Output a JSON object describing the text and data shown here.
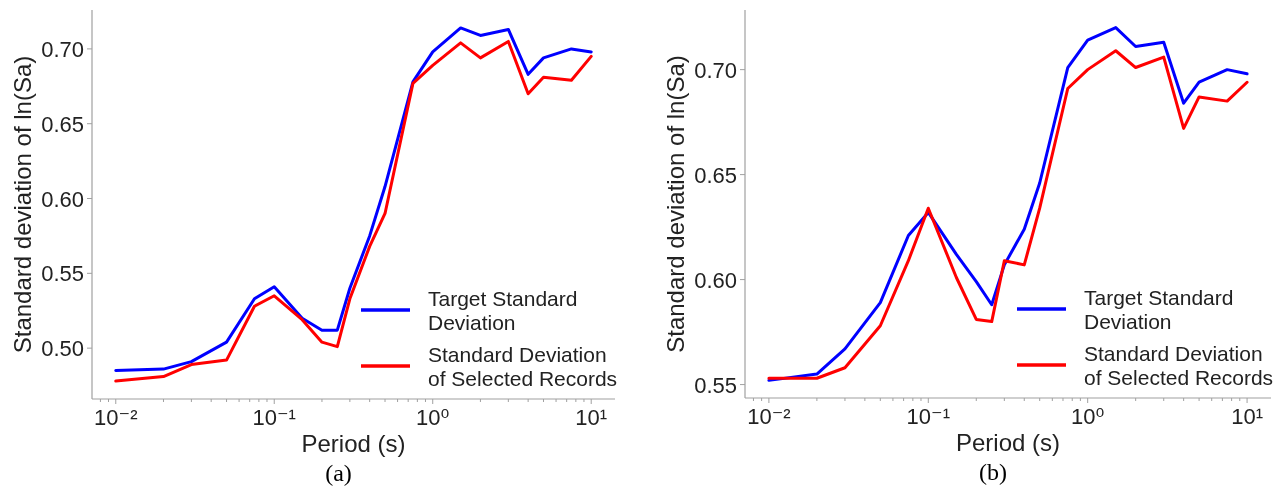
{
  "chart_data": [
    {
      "type": "line",
      "xlabel": "Period (s)",
      "ylabel": "Standard deviation of ln(Sa)",
      "annotations": [
        "(a)"
      ],
      "log": "x",
      "legend": "bottom right",
      "x": [
        0.01,
        0.02,
        0.03,
        0.05,
        0.075,
        0.1,
        0.15,
        0.2,
        0.25,
        0.3,
        0.4,
        0.5,
        0.75,
        1,
        1.5,
        2,
        3,
        4,
        5,
        7.5,
        10
      ],
      "xlim": [
        0.00708,
        14.13
      ],
      "xticks": [
        {
          "value": 0.008,
          "label": null
        },
        {
          "value": 0.009,
          "label": null
        },
        {
          "value": 0.01,
          "label": "10⁻²"
        },
        {
          "value": 0.02,
          "label": null
        },
        {
          "value": 0.03,
          "label": null
        },
        {
          "value": 0.04,
          "label": null
        },
        {
          "value": 0.05,
          "label": null
        },
        {
          "value": 0.06,
          "label": null
        },
        {
          "value": 0.07,
          "label": null
        },
        {
          "value": 0.08,
          "label": null
        },
        {
          "value": 0.09,
          "label": null
        },
        {
          "value": 0.1,
          "label": "10⁻¹"
        },
        {
          "value": 0.2,
          "label": null
        },
        {
          "value": 0.3,
          "label": null
        },
        {
          "value": 0.4,
          "label": null
        },
        {
          "value": 0.5,
          "label": null
        },
        {
          "value": 0.6,
          "label": null
        },
        {
          "value": 0.7,
          "label": null
        },
        {
          "value": 0.8,
          "label": null
        },
        {
          "value": 0.9,
          "label": null
        },
        {
          "value": 1,
          "label": "10⁰"
        },
        {
          "value": 2,
          "label": null
        },
        {
          "value": 3,
          "label": null
        },
        {
          "value": 4,
          "label": null
        },
        {
          "value": 5,
          "label": null
        },
        {
          "value": 6,
          "label": null
        },
        {
          "value": 7,
          "label": null
        },
        {
          "value": 8,
          "label": null
        },
        {
          "value": 9,
          "label": null
        },
        {
          "value": 10,
          "label": "10¹"
        }
      ],
      "ylim": [
        0.466,
        0.726
      ],
      "yticks": [
        {
          "value": 0.5,
          "label": "0.50"
        },
        {
          "value": 0.55,
          "label": "0.55"
        },
        {
          "value": 0.6,
          "label": "0.60"
        },
        {
          "value": 0.65,
          "label": "0.65"
        },
        {
          "value": 0.7,
          "label": "0.70"
        }
      ],
      "series": [
        {
          "name": "Target Standard Deviation",
          "color": "#0000ff",
          "values": [
            0.485,
            0.486,
            0.491,
            0.504,
            0.533,
            0.541,
            0.52,
            0.512,
            0.512,
            0.54,
            0.575,
            0.608,
            0.678,
            0.698,
            0.714,
            0.709,
            0.713,
            0.683,
            0.694,
            0.7,
            0.698
          ]
        },
        {
          "name": "Standard Deviation of Selected Records",
          "color": "#ff0000",
          "values": [
            0.478,
            0.481,
            0.489,
            0.492,
            0.528,
            0.535,
            0.519,
            0.504,
            0.501,
            0.533,
            0.568,
            0.59,
            0.677,
            0.689,
            0.704,
            0.694,
            0.705,
            0.67,
            0.681,
            0.679,
            0.695
          ]
        }
      ]
    },
    {
      "type": "line",
      "xlabel": "Period (s)",
      "ylabel": "Standard deviation of ln(Sa)",
      "annotations": [
        "(b)"
      ],
      "log": "x",
      "legend": "bottom right",
      "x": [
        0.01,
        0.02,
        0.03,
        0.05,
        0.075,
        0.1,
        0.15,
        0.2,
        0.25,
        0.3,
        0.4,
        0.5,
        0.75,
        1,
        1.5,
        2,
        3,
        4,
        5,
        7.5,
        10
      ],
      "xlim": [
        0.00708,
        14.13
      ],
      "xticks": [
        {
          "value": 0.008,
          "label": null
        },
        {
          "value": 0.009,
          "label": null
        },
        {
          "value": 0.01,
          "label": "10⁻²"
        },
        {
          "value": 0.02,
          "label": null
        },
        {
          "value": 0.03,
          "label": null
        },
        {
          "value": 0.04,
          "label": null
        },
        {
          "value": 0.05,
          "label": null
        },
        {
          "value": 0.06,
          "label": null
        },
        {
          "value": 0.07,
          "label": null
        },
        {
          "value": 0.08,
          "label": null
        },
        {
          "value": 0.09,
          "label": null
        },
        {
          "value": 0.1,
          "label": "10⁻¹"
        },
        {
          "value": 0.2,
          "label": null
        },
        {
          "value": 0.3,
          "label": null
        },
        {
          "value": 0.4,
          "label": null
        },
        {
          "value": 0.5,
          "label": null
        },
        {
          "value": 0.6,
          "label": null
        },
        {
          "value": 0.7,
          "label": null
        },
        {
          "value": 0.8,
          "label": null
        },
        {
          "value": 0.9,
          "label": null
        },
        {
          "value": 1,
          "label": "10⁰"
        },
        {
          "value": 2,
          "label": null
        },
        {
          "value": 3,
          "label": null
        },
        {
          "value": 4,
          "label": null
        },
        {
          "value": 5,
          "label": null
        },
        {
          "value": 6,
          "label": null
        },
        {
          "value": 7,
          "label": null
        },
        {
          "value": 8,
          "label": null
        },
        {
          "value": 9,
          "label": null
        },
        {
          "value": 10,
          "label": "10¹"
        }
      ],
      "ylim": [
        0.5436,
        0.7284
      ],
      "yticks": [
        {
          "value": 0.55,
          "label": "0.55"
        },
        {
          "value": 0.6,
          "label": "0.60"
        },
        {
          "value": 0.65,
          "label": "0.65"
        },
        {
          "value": 0.7,
          "label": "0.70"
        }
      ],
      "series": [
        {
          "name": "Target Standard Deviation",
          "color": "#0000ff",
          "values": [
            0.552,
            0.555,
            0.567,
            0.589,
            0.621,
            0.632,
            0.612,
            0.599,
            0.588,
            0.607,
            0.624,
            0.646,
            0.701,
            0.714,
            0.72,
            0.711,
            0.713,
            0.684,
            0.694,
            0.7,
            0.698
          ]
        },
        {
          "name": "Standard Deviation of Selected Records",
          "color": "#ff0000",
          "values": [
            0.553,
            0.553,
            0.558,
            0.578,
            0.609,
            0.634,
            0.601,
            0.581,
            0.58,
            0.609,
            0.607,
            0.634,
            0.691,
            0.7,
            0.709,
            0.701,
            0.706,
            0.672,
            0.687,
            0.685,
            0.694
          ]
        }
      ]
    }
  ]
}
